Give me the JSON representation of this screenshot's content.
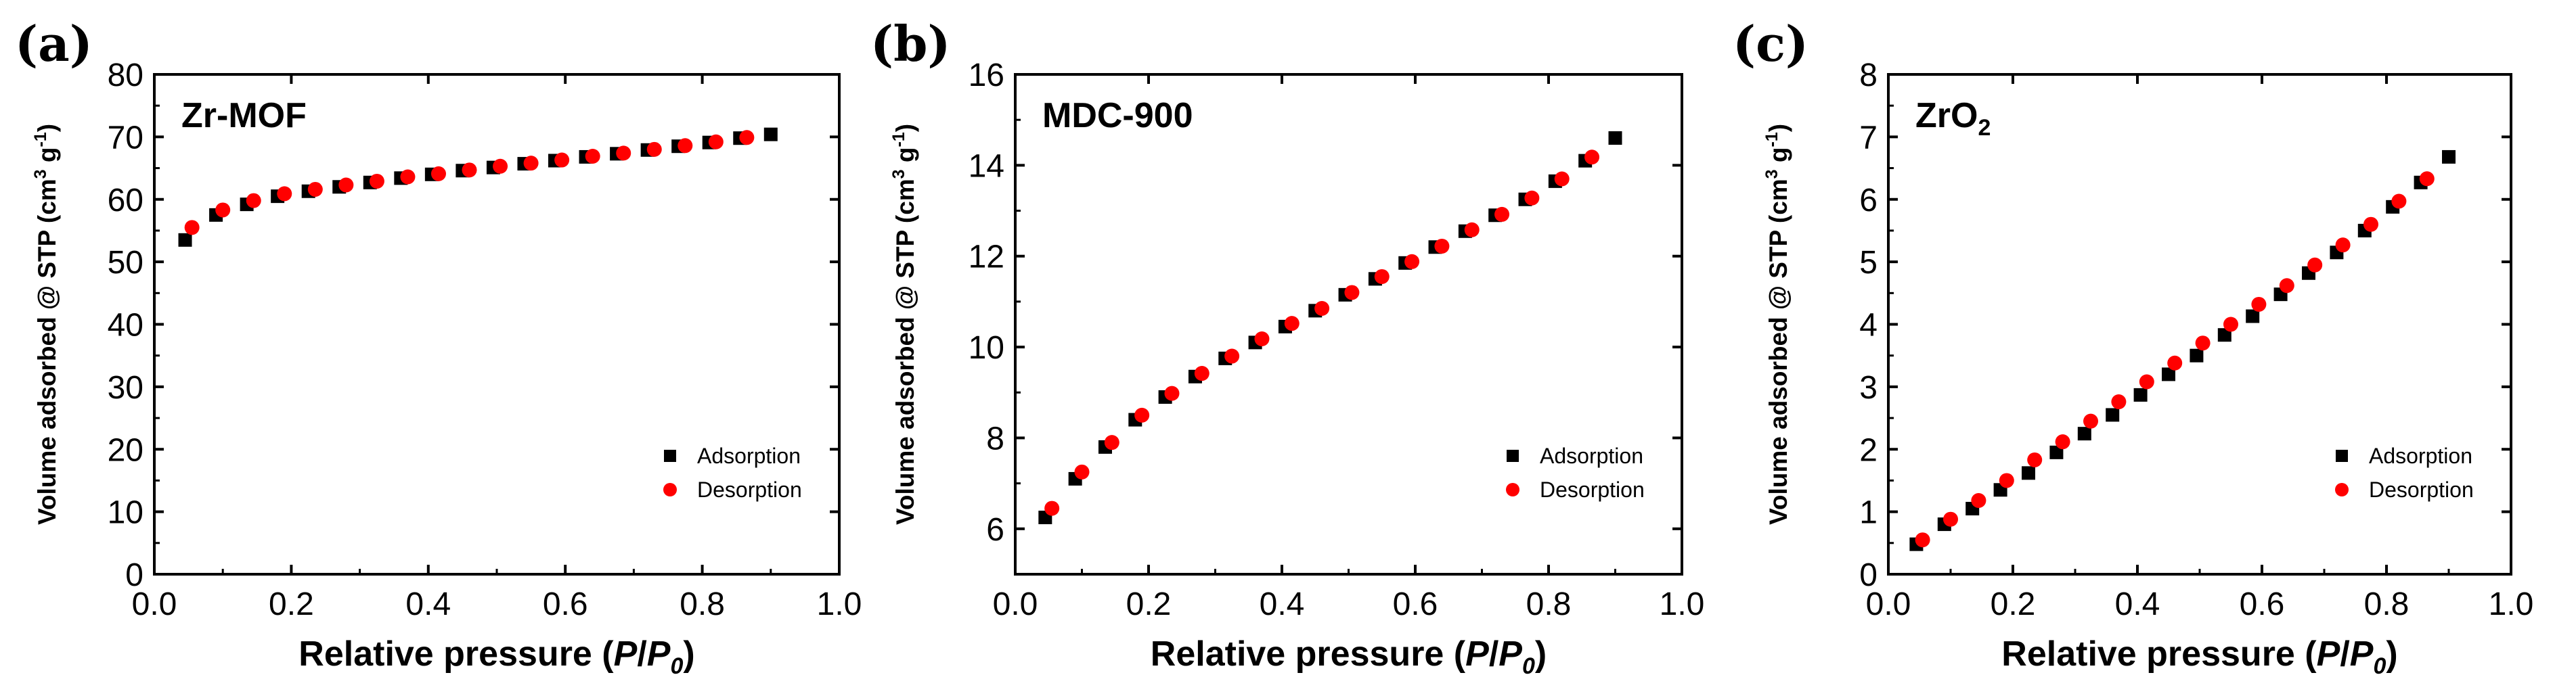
{
  "chart_data": [
    {
      "type": "scatter",
      "panel_label": "(a)",
      "title": "Zr-MOF",
      "title_sub": "",
      "xlabel": {
        "prefix": "Relative pressure (",
        "italic1": "P",
        "slash": "/",
        "italic2": "P",
        "sub": "0",
        "suffix": ")"
      },
      "ylabel": {
        "prefix": "Volume adsorbed @ STP (cm",
        "sup1": "3",
        "mid": " g",
        "sup2": "-1",
        "suffix": ")"
      },
      "xlim": [
        0.0,
        1.0
      ],
      "ylim": [
        0,
        80
      ],
      "x_ticks": [
        "0.0",
        "0.2",
        "0.4",
        "0.6",
        "0.8",
        "1.0"
      ],
      "y_ticks": [
        "0",
        "10",
        "20",
        "30",
        "40",
        "50",
        "60",
        "70",
        "80"
      ],
      "legend_position": "bottom-right",
      "series": [
        {
          "name": "Adsorption",
          "marker": "square",
          "color": "#000000",
          "x": [
            0.045,
            0.09,
            0.135,
            0.18,
            0.225,
            0.27,
            0.315,
            0.36,
            0.405,
            0.45,
            0.495,
            0.54,
            0.585,
            0.63,
            0.675,
            0.72,
            0.765,
            0.81,
            0.855,
            0.9
          ],
          "y": [
            53.5,
            57.5,
            59.2,
            60.5,
            61.3,
            62.0,
            62.7,
            63.4,
            64.0,
            64.6,
            65.1,
            65.7,
            66.2,
            66.8,
            67.3,
            67.9,
            68.5,
            69.1,
            69.8,
            70.4
          ]
        },
        {
          "name": "Desorption",
          "marker": "circle",
          "color": "#ff0000",
          "x": [
            0.055,
            0.1,
            0.145,
            0.19,
            0.235,
            0.28,
            0.325,
            0.37,
            0.415,
            0.46,
            0.505,
            0.55,
            0.595,
            0.64,
            0.685,
            0.73,
            0.775,
            0.82,
            0.865
          ],
          "y": [
            55.5,
            58.3,
            59.8,
            60.9,
            61.6,
            62.3,
            62.9,
            63.6,
            64.1,
            64.7,
            65.3,
            65.8,
            66.3,
            66.9,
            67.4,
            68.0,
            68.6,
            69.2,
            69.9
          ]
        }
      ]
    },
    {
      "type": "scatter",
      "panel_label": "(b)",
      "title": "MDC-900",
      "title_sub": "",
      "xlabel": {
        "prefix": "Relative pressure (",
        "italic1": "P",
        "slash": "/",
        "italic2": "P",
        "sub": "0",
        "suffix": ")"
      },
      "ylabel": {
        "prefix": "Volume adsorbed @ STP (cm",
        "sup1": "3",
        "mid": " g",
        "sup2": "-1",
        "suffix": ")"
      },
      "xlim": [
        0.0,
        1.0
      ],
      "ylim": [
        5,
        16
      ],
      "x_ticks": [
        "0.0",
        "0.2",
        "0.4",
        "0.6",
        "0.8",
        "1.0"
      ],
      "y_ticks": [
        "6",
        "8",
        "10",
        "12",
        "14",
        "16"
      ],
      "legend_position": "bottom-right",
      "series": [
        {
          "name": "Adsorption",
          "marker": "square",
          "color": "#000000",
          "x": [
            0.045,
            0.09,
            0.135,
            0.18,
            0.225,
            0.27,
            0.315,
            0.36,
            0.405,
            0.45,
            0.495,
            0.54,
            0.585,
            0.63,
            0.675,
            0.72,
            0.765,
            0.81,
            0.855,
            0.9
          ],
          "y": [
            6.25,
            7.1,
            7.8,
            8.4,
            8.9,
            9.35,
            9.75,
            10.1,
            10.45,
            10.8,
            11.15,
            11.5,
            11.85,
            12.2,
            12.55,
            12.9,
            13.25,
            13.65,
            14.1,
            14.6
          ]
        },
        {
          "name": "Desorption",
          "marker": "circle",
          "color": "#ff0000",
          "x": [
            0.055,
            0.1,
            0.145,
            0.19,
            0.235,
            0.28,
            0.325,
            0.37,
            0.415,
            0.46,
            0.505,
            0.55,
            0.595,
            0.64,
            0.685,
            0.73,
            0.775,
            0.82,
            0.865
          ],
          "y": [
            6.45,
            7.25,
            7.9,
            8.5,
            8.98,
            9.42,
            9.8,
            10.18,
            10.52,
            10.85,
            11.2,
            11.55,
            11.88,
            12.22,
            12.58,
            12.92,
            13.28,
            13.7,
            14.18
          ]
        }
      ]
    },
    {
      "type": "scatter",
      "panel_label": "(c)",
      "title": "ZrO",
      "title_sub": "2",
      "xlabel": {
        "prefix": "Relative pressure (",
        "italic1": "P",
        "slash": "/",
        "italic2": "P",
        "sub": "0",
        "suffix": ")"
      },
      "ylabel": {
        "prefix": "Volume adsorbed @ STP (cm",
        "sup1": "3",
        "mid": " g",
        "sup2": "-1",
        "suffix": ")"
      },
      "xlim": [
        0.0,
        1.0
      ],
      "ylim": [
        0,
        8
      ],
      "x_ticks": [
        "0.0",
        "0.2",
        "0.4",
        "0.6",
        "0.8",
        "1.0"
      ],
      "y_ticks": [
        "0",
        "1",
        "2",
        "3",
        "4",
        "5",
        "6",
        "7",
        "8"
      ],
      "legend_position": "bottom-right",
      "series": [
        {
          "name": "Adsorption",
          "marker": "square",
          "color": "#000000",
          "x": [
            0.045,
            0.09,
            0.135,
            0.18,
            0.225,
            0.27,
            0.315,
            0.36,
            0.405,
            0.45,
            0.495,
            0.54,
            0.585,
            0.63,
            0.675,
            0.72,
            0.765,
            0.81,
            0.855,
            0.9
          ],
          "y": [
            0.48,
            0.8,
            1.05,
            1.35,
            1.62,
            1.95,
            2.25,
            2.55,
            2.87,
            3.2,
            3.5,
            3.83,
            4.13,
            4.48,
            4.82,
            5.15,
            5.5,
            5.88,
            6.27,
            6.68
          ]
        },
        {
          "name": "Desorption",
          "marker": "circle",
          "color": "#ff0000",
          "x": [
            0.055,
            0.1,
            0.145,
            0.19,
            0.235,
            0.28,
            0.325,
            0.37,
            0.415,
            0.46,
            0.505,
            0.55,
            0.595,
            0.64,
            0.685,
            0.73,
            0.775,
            0.82,
            0.865
          ],
          "y": [
            0.55,
            0.88,
            1.18,
            1.5,
            1.83,
            2.12,
            2.45,
            2.76,
            3.08,
            3.38,
            3.7,
            4.0,
            4.32,
            4.62,
            4.95,
            5.27,
            5.6,
            5.97,
            6.33
          ]
        }
      ]
    }
  ]
}
